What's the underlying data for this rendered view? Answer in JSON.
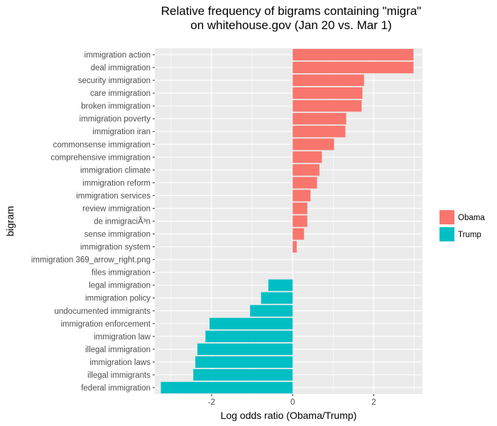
{
  "chart_data": {
    "type": "bar",
    "orientation": "horizontal",
    "title": "Relative frequency of bigrams containing \"migra\"\non whitehouse.gov (Jan 20 vs. Mar 1)",
    "xlabel": "Log odds ratio (Obama/Trump)",
    "ylabel": "bigram",
    "xlim": [
      -3.4,
      3.2
    ],
    "x_ticks": [
      -2,
      0,
      2
    ],
    "x_tick_labels": [
      "-2",
      "0",
      "2"
    ],
    "grid": true,
    "legend_position": "right",
    "series": [
      {
        "name": "Obama",
        "color": "#F8766D"
      },
      {
        "name": "Trump",
        "color": "#00BFC4"
      }
    ],
    "categories": [
      "immigration action",
      "deal immigration",
      "security immigration",
      "care immigration",
      "broken immigration",
      "immigration poverty",
      "immigration iran",
      "commonsense immigration",
      "comprehensive immigration",
      "immigration climate",
      "immigration reform",
      "immigration services",
      "review immigration",
      "de inmigraciÃ³n",
      "sense immigration",
      "immigration system",
      "immigration 369_arrow_right.png",
      "files immigration",
      "legal immigration",
      "immigration policy",
      "undocumented immigrants",
      "immigration enforcement",
      "immigration law",
      "illegal immigration",
      "immigration laws",
      "illegal immigrants",
      "federal immigration"
    ],
    "values": [
      2.98,
      2.98,
      1.76,
      1.72,
      1.7,
      1.32,
      1.3,
      1.02,
      0.72,
      0.66,
      0.6,
      0.44,
      0.36,
      0.36,
      0.28,
      0.1,
      0.0,
      0.0,
      -0.6,
      -0.78,
      -1.05,
      -2.05,
      -2.15,
      -2.35,
      -2.4,
      -2.45,
      -3.25
    ],
    "groups": [
      "Obama",
      "Obama",
      "Obama",
      "Obama",
      "Obama",
      "Obama",
      "Obama",
      "Obama",
      "Obama",
      "Obama",
      "Obama",
      "Obama",
      "Obama",
      "Obama",
      "Obama",
      "Obama",
      "Obama",
      "Obama",
      "Trump",
      "Trump",
      "Trump",
      "Trump",
      "Trump",
      "Trump",
      "Trump",
      "Trump",
      "Trump"
    ],
    "panel_background": "#EBEBEB"
  }
}
